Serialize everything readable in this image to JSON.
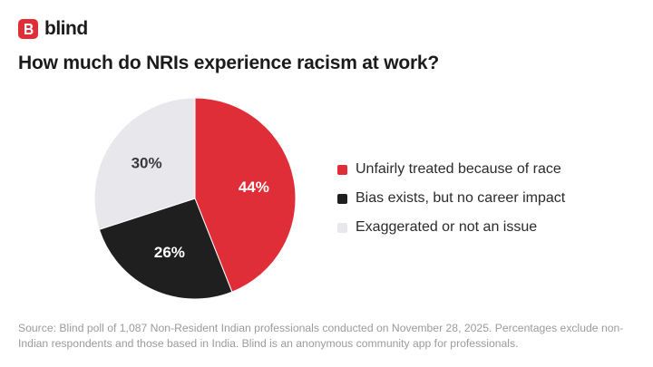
{
  "brand": {
    "name": "blind",
    "logo_icon": "blind-logo-icon",
    "color": "#df2e38"
  },
  "title": "How much do NRIs experience racism at work?",
  "chart_data": {
    "type": "pie",
    "title": "How much do NRIs experience racism at work?",
    "start": "12 o'clock",
    "direction": "clockwise",
    "legend_position": "right",
    "slices": [
      {
        "label": "Unfairly treated because of race",
        "value": 44,
        "display": "44%",
        "color": "#df2e38",
        "label_color": "#ffffff"
      },
      {
        "label": "Bias exists, but no career impact",
        "value": 26,
        "display": "26%",
        "color": "#1f1f1f",
        "label_color": "#ffffff"
      },
      {
        "label": "Exaggerated or not an issue",
        "value": 30,
        "display": "30%",
        "color": "#e8e8ec",
        "label_color": "#3a3a3a"
      }
    ]
  },
  "source": "Source: Blind poll of 1,087 Non-Resident Indian professionals conducted on November 28, 2025. Percentages exclude non-Indian respondents and those based in India. Blind is an anonymous community app for professionals."
}
